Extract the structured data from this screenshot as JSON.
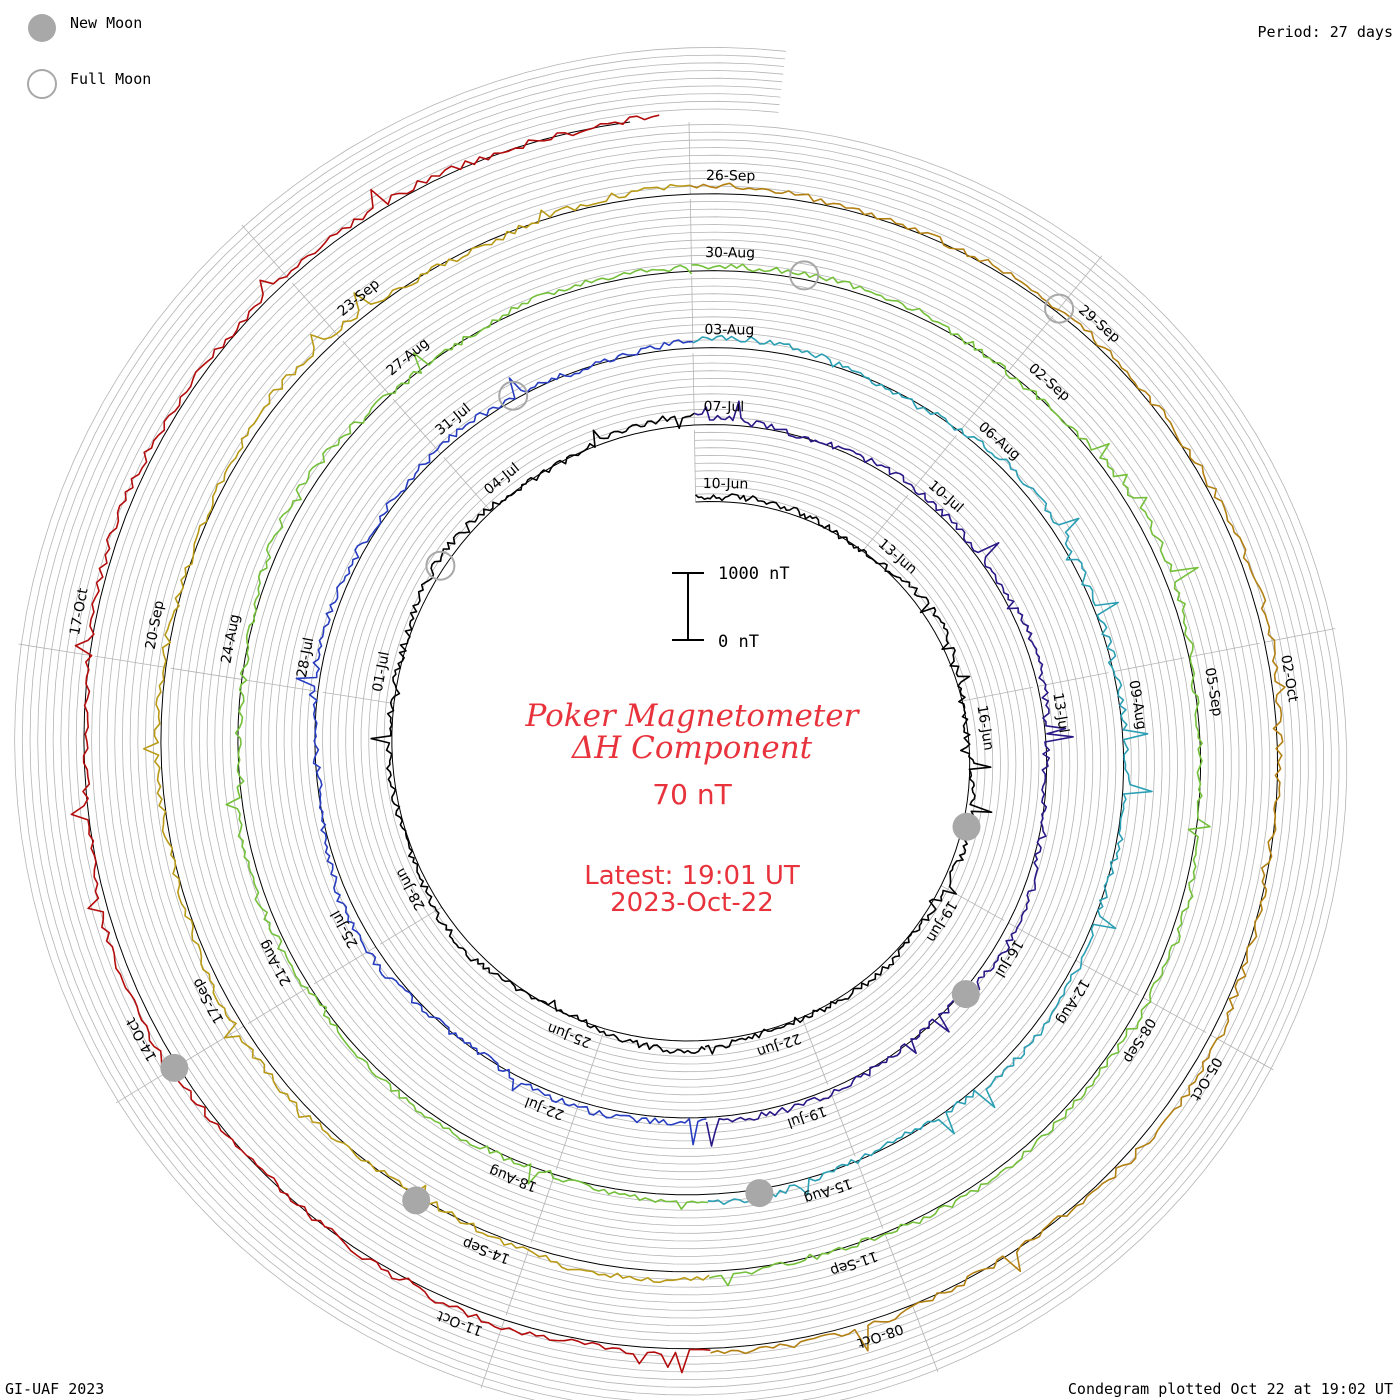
{
  "legend": {
    "new_moon": "New Moon",
    "full_moon": "Full Moon"
  },
  "period_label": "Period: 27 days",
  "footer_left": "GI-UAF 2023",
  "footer_right": "Condegram plotted Oct 22 at 19:02 UT",
  "title_line1": "Poker Magnetometer",
  "title_line2": "ΔH Component",
  "scale_value": "70 nT",
  "latest_time": "Latest: 19:01 UT",
  "latest_date": "2023-Oct-22",
  "colors": {
    "title": "#e8323c",
    "grid": "#b4b4b4",
    "baseline": "#000000",
    "moon_fill": "#a8a8a8",
    "moon_stroke": "#a8a8a8",
    "turns": [
      "#000000",
      "#2b1887",
      "#283ec0",
      "#2b9fb4",
      "#74c03a",
      "#b99a16",
      "#b38012",
      "#b40c0c"
    ]
  },
  "chart_data": {
    "type": "condegram",
    "period_days": 27,
    "scale_bar": {
      "top": "1000 nT",
      "bottom": "0 nT"
    },
    "turns": [
      {
        "start": "10-Jun",
        "end": "06-Jul",
        "date_labels": [
          "10-Jun",
          "13-Jun",
          "16-Jun",
          "19-Jun",
          "22-Jun",
          "25-Jun",
          "28-Jun",
          "01-Jul",
          "04-Jul"
        ]
      },
      {
        "start": "07-Jul",
        "end": "02-Aug",
        "date_labels": [
          "07-Jul",
          "10-Jul",
          "13-Jul",
          "16-Jul",
          "19-Jul",
          "22-Jul",
          "25-Jul",
          "28-Jul",
          "31-Jul"
        ]
      },
      {
        "start": "03-Aug",
        "end": "29-Aug",
        "date_labels": [
          "03-Aug",
          "06-Aug",
          "09-Aug",
          "12-Aug",
          "15-Aug",
          "18-Aug",
          "21-Aug",
          "24-Aug",
          "27-Aug"
        ]
      },
      {
        "start": "30-Aug",
        "end": "25-Sep",
        "date_labels": [
          "30-Aug",
          "02-Sep",
          "05-Sep",
          "08-Sep",
          "11-Sep",
          "14-Sep",
          "17-Sep",
          "20-Sep",
          "23-Sep"
        ]
      },
      {
        "start": "26-Sep",
        "end": "22-Oct",
        "date_labels": [
          "26-Sep",
          "29-Sep",
          "02-Oct",
          "05-Oct",
          "08-Oct",
          "11-Oct",
          "14-Oct",
          "17-Oct"
        ]
      }
    ],
    "new_moon_dates": [
      "18-Jun",
      "17-Jul",
      "16-Aug",
      "15-Sep",
      "14-Oct"
    ],
    "full_moon_dates": [
      "03-Jul",
      "01-Aug",
      "31-Aug",
      "29-Sep"
    ]
  }
}
